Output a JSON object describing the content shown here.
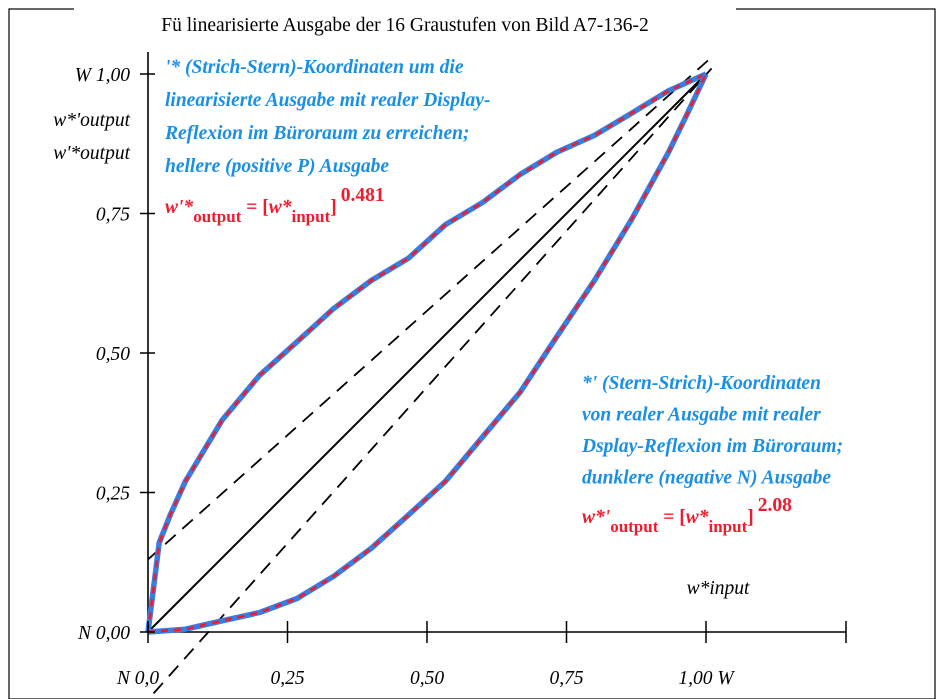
{
  "chart_data": {
    "type": "line",
    "title": "Fü linearisierte Ausgabe der 16 Graustufen von Bild A7-136-2",
    "xlim": [
      0,
      1
    ],
    "ylim": [
      0,
      1
    ],
    "x_ticks": [
      {
        "value": 0,
        "label": "N  0,0"
      },
      {
        "value": 0.25,
        "label": "0,25"
      },
      {
        "value": 0.5,
        "label": "0,50"
      },
      {
        "value": 0.75,
        "label": "0,75"
      },
      {
        "value": 1,
        "label": "1,00  W"
      }
    ],
    "y_ticks": [
      {
        "value": 0,
        "label": "N 0,00"
      },
      {
        "value": 0.25,
        "label": "0,25"
      },
      {
        "value": 0.5,
        "label": "0,50"
      },
      {
        "value": 0.75,
        "label": "0,75"
      },
      {
        "value": 1,
        "label": "W 1,00"
      }
    ],
    "ylabel_lines": [
      "w*'output",
      "w'*output"
    ],
    "xlabel": "w*input",
    "reference_lines": [
      {
        "kind": "solid",
        "x": [
          0,
          1
        ],
        "y": [
          0,
          1
        ]
      },
      {
        "kind": "dashed",
        "x": [
          0,
          1.01
        ],
        "y": [
          0.13,
          1.03
        ]
      },
      {
        "kind": "dashed",
        "x": [
          0.01,
          1.01
        ],
        "y": [
          -0.11,
          1.01
        ]
      }
    ],
    "series": [
      {
        "x": [
          0,
          0.02,
          0.04,
          0.067,
          0.133,
          0.2,
          0.267,
          0.333,
          0.4,
          0.467,
          0.533,
          0.6,
          0.667,
          0.733,
          0.8,
          0.867,
          0.933,
          1.0
        ],
        "y": [
          0,
          0.16,
          0.21,
          0.27,
          0.38,
          0.46,
          0.52,
          0.58,
          0.63,
          0.67,
          0.73,
          0.77,
          0.82,
          0.86,
          0.89,
          0.93,
          0.97,
          1.0
        ],
        "exponent": 0.481
      },
      {
        "x": [
          0,
          0.067,
          0.133,
          0.2,
          0.267,
          0.333,
          0.4,
          0.467,
          0.533,
          0.6,
          0.667,
          0.733,
          0.8,
          0.867,
          0.933,
          0.967,
          1.0
        ],
        "y": [
          0,
          0.005,
          0.02,
          0.035,
          0.06,
          0.1,
          0.15,
          0.21,
          0.27,
          0.35,
          0.43,
          0.53,
          0.63,
          0.74,
          0.86,
          0.93,
          1.0
        ],
        "exponent": 2.08
      }
    ],
    "annotations": {
      "upper": {
        "lines": [
          "'* (Strich-Stern)-Koordinaten um die",
          "linearisierte Ausgabe mit realer Display-",
          "Reflexion im Büroraum zu erreichen;",
          "hellere (positive P) Ausgabe"
        ],
        "formula": {
          "lhs_base": "w'*",
          "lhs_sub": "output",
          "eq": " = [",
          "rhs_base": "w*",
          "rhs_sub": "input",
          "close": "]",
          "exp": "0.481"
        }
      },
      "lower": {
        "lines": [
          "*' (Stern-Strich)-Koordinaten",
          "von realer Ausgabe mit realer",
          "Dsplay-Reflexion im Büroraum;",
          "dunklere (negative N) Ausgabe"
        ],
        "formula": {
          "lhs_base": "w*'",
          "lhs_sub": "output",
          "eq": " = [",
          "rhs_base": "w*",
          "rhs_sub": "input",
          "close": "]",
          "exp": "2.08"
        }
      }
    },
    "colors": {
      "curve_blue": "#3a7de0",
      "curve_red": "#ee1c2e",
      "annotation_blue": "#1a8fe6",
      "formula_red": "#ee1c2e",
      "axis": "#000000"
    }
  }
}
